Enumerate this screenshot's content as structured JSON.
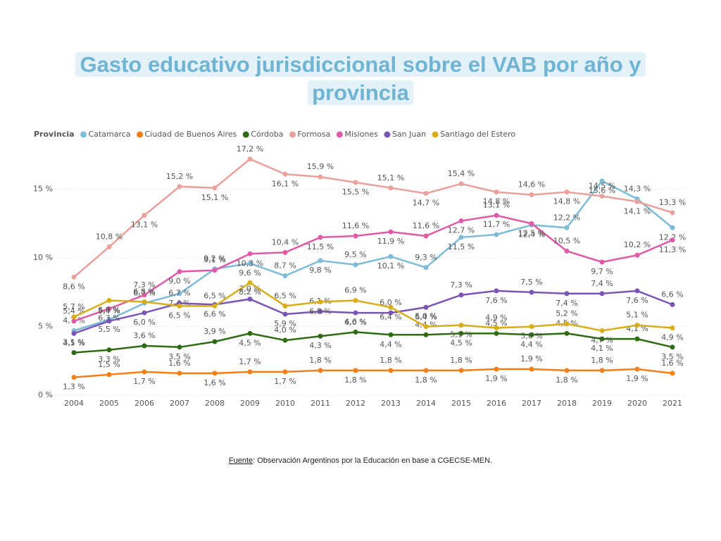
{
  "chart_data": {
    "type": "line",
    "title": "Gasto educativo jurisdiccional sobre el VAB por año y provincia",
    "legend_title": "Provincia",
    "source_label": "Fuente",
    "source_text": ": Observación Argentinos por la Educación en base a CGECSE-MEN.",
    "categories": [
      "2004",
      "2005",
      "2006",
      "2007",
      "2008",
      "2009",
      "2010",
      "2011",
      "2012",
      "2013",
      "2014",
      "2015",
      "2016",
      "2017",
      "2018",
      "2019",
      "2020",
      "2021"
    ],
    "ylim": [
      0,
      17.5
    ],
    "yticks": [
      {
        "value": 0,
        "label": "0 %"
      },
      {
        "value": 5,
        "label": "5 %"
      },
      {
        "value": 10,
        "label": "10 %"
      },
      {
        "value": 15,
        "label": "15 %"
      }
    ],
    "grid": true,
    "series": [
      {
        "name": "Catamarca",
        "color": "#7dbcd6",
        "values": [
          4.7,
          5.5,
          6.7,
          7.4,
          9.2,
          9.6,
          8.7,
          9.8,
          9.5,
          10.1,
          9.3,
          11.5,
          11.7,
          12.4,
          12.2,
          15.6,
          14.3,
          12.2
        ],
        "value_labels": [
          "4,7 %",
          "5,5 %",
          "6,7 %",
          "7,4 %",
          "9,2 %",
          "9,6 %",
          "8,7 %",
          "9,8 %",
          "9,5 %",
          "10,1 %",
          "9,3 %",
          "11,5 %",
          "11,7 %",
          "12,4 %",
          "12,2 %",
          "15,6 %",
          "14,3 %",
          "12,2 %"
        ]
      },
      {
        "name": "Ciudad de Buenos Aires",
        "color": "#f57f17",
        "values": [
          1.3,
          1.5,
          1.7,
          1.6,
          1.6,
          1.7,
          1.7,
          1.8,
          1.8,
          1.8,
          1.8,
          1.8,
          1.9,
          1.9,
          1.8,
          1.8,
          1.9,
          1.6
        ],
        "value_labels": [
          "1,3 %",
          "1,5 %",
          "1,7 %",
          "1,6 %",
          "1,6 %",
          "1,7 %",
          "1,7 %",
          "1,8 %",
          "1,8 %",
          "1,8 %",
          "1,8 %",
          "1,8 %",
          "1,9 %",
          "1,9 %",
          "1,8 %",
          "1,8 %",
          "1,9 %",
          "1,6 %"
        ]
      },
      {
        "name": "Córdoba",
        "color": "#2e6b12",
        "values": [
          3.1,
          3.3,
          3.6,
          3.5,
          3.9,
          4.5,
          4.0,
          4.3,
          4.6,
          4.4,
          4.4,
          4.5,
          4.5,
          4.4,
          4.5,
          4.1,
          4.1,
          3.5
        ],
        "value_labels": [
          "3,1 %",
          "3,3 %",
          "3,6 %",
          "3,5 %",
          "3,9 %",
          "4,5 %",
          "4,0 %",
          "4,3 %",
          "4,6 %",
          "4,4 %",
          "4,4 %",
          "4,5 %",
          "4,5 %",
          "4,4 %",
          "4,5 %",
          "4,1 %",
          "4,1 %",
          "3,5 %"
        ]
      },
      {
        "name": "Formosa",
        "color": "#e8a19c",
        "values": [
          8.6,
          10.8,
          13.1,
          15.2,
          15.1,
          17.2,
          16.1,
          15.9,
          15.5,
          15.1,
          14.7,
          15.4,
          14.8,
          14.6,
          14.8,
          14.5,
          14.1,
          13.3
        ],
        "value_labels": [
          "8,6 %",
          "10,8 %",
          "13,1 %",
          "15,2 %",
          "15,1 %",
          "17,2 %",
          "16,1 %",
          "15,9 %",
          "15,5 %",
          "15,1 %",
          "14,7 %",
          "15,4 %",
          "14,8 %",
          "14,6 %",
          "14,8 %",
          "14,5 %",
          "14,1 %",
          "13,3 %"
        ]
      },
      {
        "name": "Misiones",
        "color": "#e05aa8",
        "values": [
          5.4,
          6.3,
          7.3,
          9.0,
          9.1,
          10.3,
          10.4,
          11.5,
          11.6,
          11.9,
          11.6,
          12.7,
          13.1,
          12.5,
          10.5,
          9.7,
          10.2,
          11.3
        ],
        "value_labels": [
          "5,4 %",
          "6,3 %",
          "7,3 %",
          "9,0 %",
          "9,1 %",
          "10,3 %",
          "10,4 %",
          "11,5 %",
          "11,6 %",
          "11,9 %",
          "11,6 %",
          "12,7 %",
          "13,1 %",
          "12,5 %",
          "10,5 %",
          "9,7 %",
          "10,2 %",
          "11,3 %"
        ]
      },
      {
        "name": "San Juan",
        "color": "#7b55b5",
        "values": [
          4.5,
          5.4,
          6.0,
          6.7,
          6.6,
          7.0,
          5.9,
          6.1,
          6.0,
          6.0,
          6.4,
          7.3,
          7.6,
          7.5,
          7.4,
          7.4,
          7.6,
          6.6
        ],
        "value_labels": [
          "4,5 %",
          "5,4 %",
          "6,0 %",
          "6,7 %",
          "6,6 %",
          "7,0 %",
          "5,9 %",
          "6,1 %",
          "6,0 %",
          "6,0 %",
          "6,4 %",
          "7,3 %",
          "7,6 %",
          "7,5 %",
          "7,4 %",
          "7,4 %",
          "7,6 %",
          "6,6 %"
        ]
      },
      {
        "name": "Santiago del Estero",
        "color": "#d9ad1a",
        "values": [
          5.7,
          6.9,
          6.8,
          6.5,
          6.5,
          8.2,
          6.5,
          6.8,
          6.9,
          6.4,
          5.0,
          5.1,
          4.9,
          5.0,
          5.2,
          4.7,
          5.1,
          4.9
        ],
        "value_labels": [
          "5,7 %",
          "6,9 %",
          "6,8 %",
          "6,5 %",
          "6,5 %",
          "8,2 %",
          "6,5 %",
          "6,8 %",
          "6,9 %",
          "6,4 %",
          "5,0 %",
          "5,1 %",
          "4,9 %",
          "5,0 %",
          "5,2 %",
          "4,7 %",
          "5,1 %",
          "4,9 %"
        ]
      }
    ]
  }
}
